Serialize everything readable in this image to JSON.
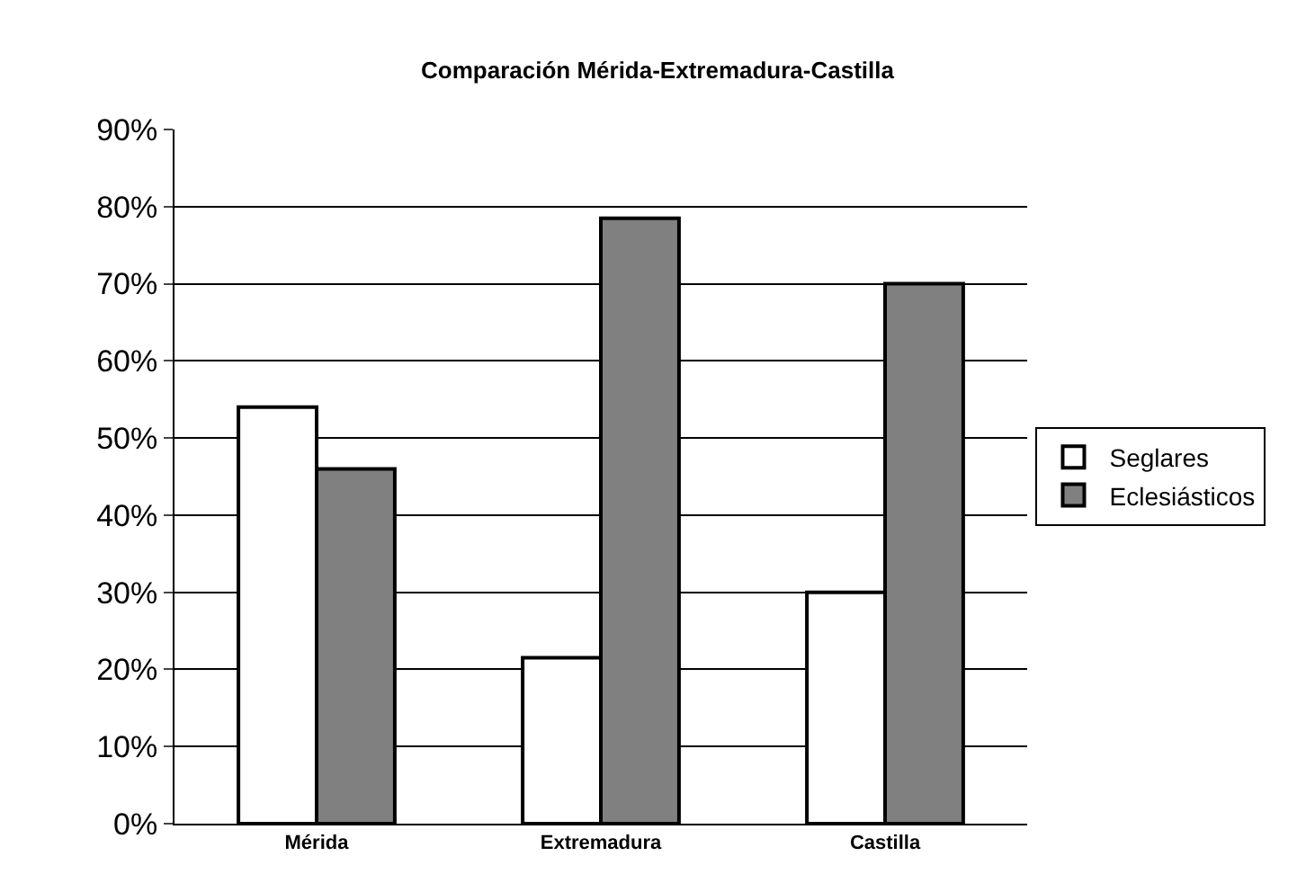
{
  "chart_data": {
    "type": "bar",
    "title": "Comparación Mérida-Extremadura-Castilla",
    "categories": [
      "Mérida",
      "Extremadura",
      "Castilla"
    ],
    "series": [
      {
        "name": "Seglares",
        "color": "#ffffff",
        "values": [
          0.54,
          0.215,
          0.3
        ]
      },
      {
        "name": "Eclesiásticos",
        "color": "#808080",
        "values": [
          0.46,
          0.785,
          0.7
        ]
      }
    ],
    "ylim": [
      0,
      0.9
    ],
    "yticks": [
      {
        "value": 0,
        "label": "0%"
      },
      {
        "value": 0.1,
        "label": "10%"
      },
      {
        "value": 0.2,
        "label": "20%"
      },
      {
        "value": 0.3,
        "label": "30%"
      },
      {
        "value": 0.4,
        "label": "40%"
      },
      {
        "value": 0.5,
        "label": "50%"
      },
      {
        "value": 0.6,
        "label": "60%"
      },
      {
        "value": 0.7,
        "label": "70%"
      },
      {
        "value": 0.8,
        "label": "80%"
      },
      {
        "value": 0.9,
        "label": "90%"
      }
    ],
    "grid": "y",
    "legend": "right"
  }
}
